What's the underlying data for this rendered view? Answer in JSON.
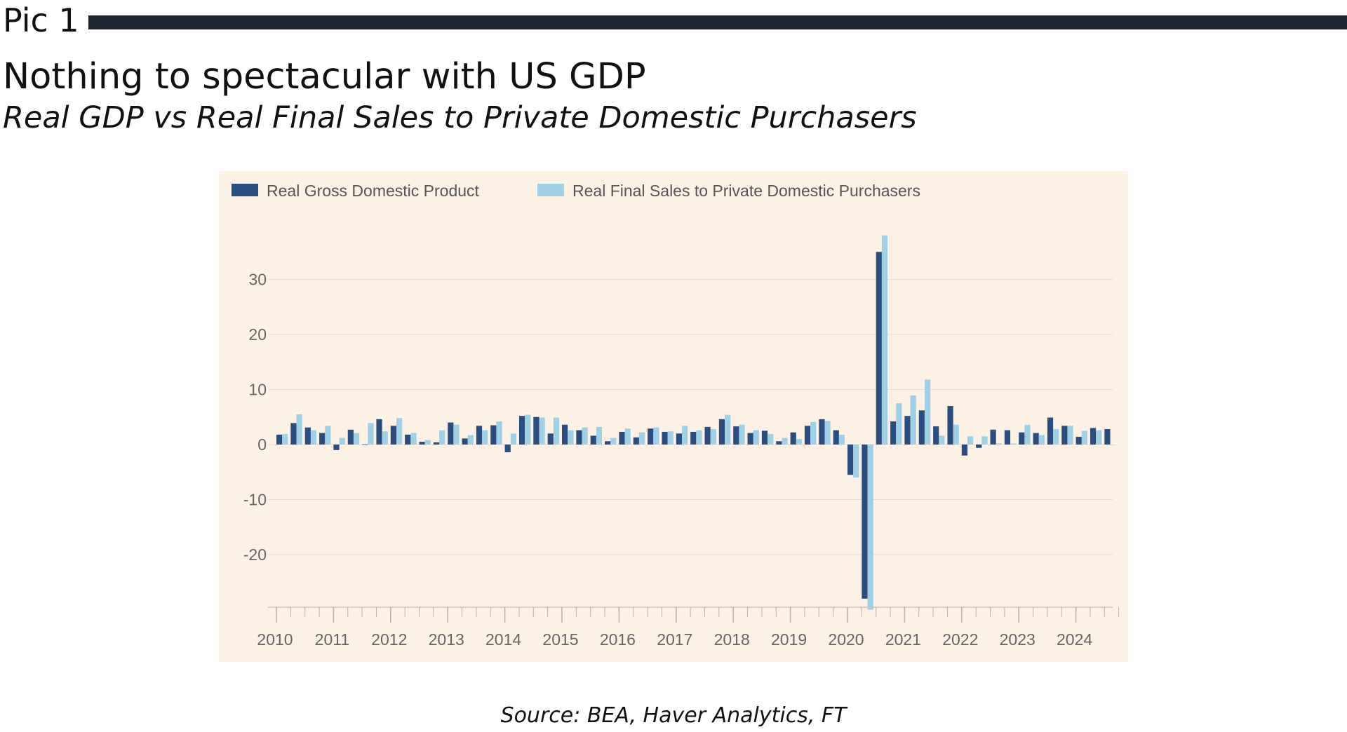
{
  "header": {
    "pic_label": "Pic 1",
    "title": "Nothing to spectacular with US GDP",
    "subtitle": "Real GDP vs Real Final Sales to Private Domestic Purchasers"
  },
  "source": "Source: BEA, Haver Analytics, FT",
  "colors": {
    "panel_background": "#fbf1e5",
    "gdp": "#2b4c7e",
    "final_sales": "#9fd0e6",
    "rule": "#1f2231"
  },
  "chart_data": {
    "type": "bar",
    "title": "",
    "xlabel": "",
    "ylabel": "",
    "ylim": [
      -30,
      38
    ],
    "yticks": [
      30,
      20,
      10,
      0,
      -10,
      -20
    ],
    "ytick_labels": [
      "30",
      "20",
      "10",
      "0",
      "-10",
      "-20"
    ],
    "grid": true,
    "legend_position": "top-left",
    "year_labels": [
      "2010",
      "2011",
      "2012",
      "2013",
      "2014",
      "2015",
      "2016",
      "2017",
      "2018",
      "2019",
      "2020",
      "2021",
      "2022",
      "2023",
      "2024"
    ],
    "categories": [
      "2010 Q1",
      "2010 Q2",
      "2010 Q3",
      "2010 Q4",
      "2011 Q1",
      "2011 Q2",
      "2011 Q3",
      "2011 Q4",
      "2012 Q1",
      "2012 Q2",
      "2012 Q3",
      "2012 Q4",
      "2013 Q1",
      "2013 Q2",
      "2013 Q3",
      "2013 Q4",
      "2014 Q1",
      "2014 Q2",
      "2014 Q3",
      "2014 Q4",
      "2015 Q1",
      "2015 Q2",
      "2015 Q3",
      "2015 Q4",
      "2016 Q1",
      "2016 Q2",
      "2016 Q3",
      "2016 Q4",
      "2017 Q1",
      "2017 Q2",
      "2017 Q3",
      "2017 Q4",
      "2018 Q1",
      "2018 Q2",
      "2018 Q3",
      "2018 Q4",
      "2019 Q1",
      "2019 Q2",
      "2019 Q3",
      "2019 Q4",
      "2020 Q1",
      "2020 Q2",
      "2020 Q3",
      "2020 Q4",
      "2021 Q1",
      "2021 Q2",
      "2021 Q3",
      "2021 Q4",
      "2022 Q1",
      "2022 Q2",
      "2022 Q3",
      "2022 Q4",
      "2023 Q1",
      "2023 Q2",
      "2023 Q3",
      "2023 Q4",
      "2024 Q1",
      "2024 Q2",
      "2024 Q3"
    ],
    "series": [
      {
        "name": "Real Gross Domestic Product",
        "color": "#2b4c7e",
        "values": [
          1.8,
          3.9,
          3.1,
          2.1,
          -1.0,
          2.7,
          -0.1,
          4.6,
          3.4,
          1.8,
          0.5,
          0.4,
          4.0,
          1.1,
          3.4,
          3.5,
          -1.4,
          5.2,
          5.0,
          2.0,
          3.6,
          2.6,
          1.6,
          0.6,
          2.3,
          1.3,
          2.9,
          2.3,
          2.0,
          2.3,
          3.2,
          4.6,
          3.3,
          2.1,
          2.5,
          0.6,
          2.2,
          3.4,
          4.6,
          2.6,
          -5.5,
          -28.0,
          35.0,
          4.2,
          5.2,
          6.2,
          3.3,
          7.0,
          -2.0,
          -0.6,
          2.7,
          2.6,
          2.2,
          2.1,
          4.9,
          3.4,
          1.4,
          3.0,
          2.8
        ]
      },
      {
        "name": "Real Final Sales to Private Domestic Purchasers",
        "color": "#9fd0e6",
        "values": [
          1.9,
          5.5,
          2.6,
          3.4,
          1.2,
          2.1,
          3.9,
          2.4,
          4.8,
          2.1,
          0.8,
          2.6,
          3.6,
          1.7,
          2.6,
          4.2,
          2.0,
          5.4,
          4.9,
          4.9,
          2.6,
          3.1,
          3.2,
          1.2,
          2.9,
          2.2,
          3.1,
          2.4,
          3.4,
          2.6,
          2.8,
          5.4,
          3.6,
          2.6,
          1.9,
          1.2,
          1.0,
          4.1,
          4.3,
          1.8,
          -6.0,
          -30.0,
          38.0,
          7.5,
          8.9,
          11.8,
          1.6,
          3.6,
          1.5,
          1.5,
          0.2,
          0.2,
          3.6,
          1.7,
          2.8,
          3.4,
          2.5,
          2.6,
          0.0
        ]
      }
    ]
  }
}
